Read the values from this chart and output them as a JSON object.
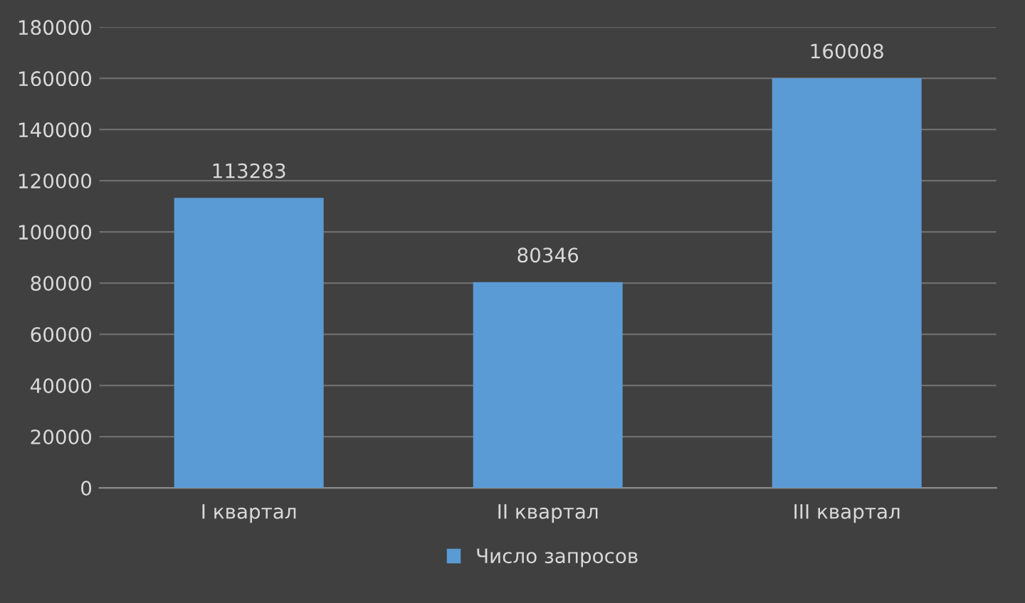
{
  "chart_data": {
    "type": "bar",
    "categories": [
      "I квартал",
      "II квартал",
      "III квартал"
    ],
    "series": [
      {
        "name": "Число запросов",
        "color": "#5b9bd5",
        "values": [
          113283,
          80346,
          160008
        ]
      }
    ],
    "ylim": [
      0,
      180000
    ],
    "yticks": [
      0,
      20000,
      40000,
      60000,
      80000,
      100000,
      120000,
      140000,
      160000,
      180000
    ],
    "grid": "y",
    "legend": "bottom",
    "data_labels": true
  }
}
